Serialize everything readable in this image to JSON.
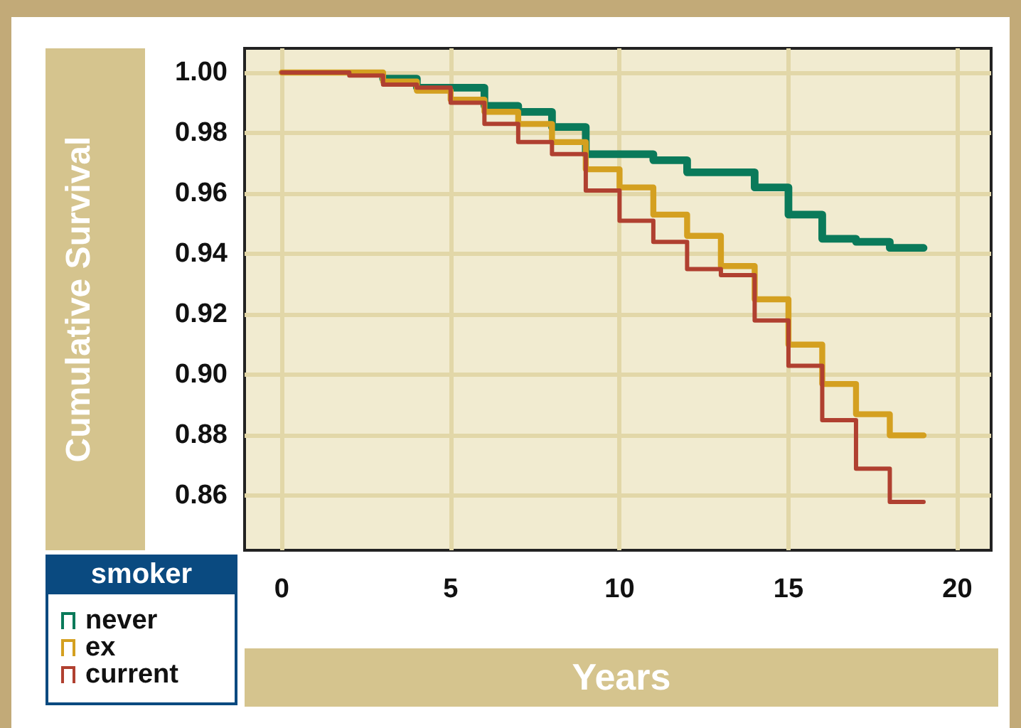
{
  "chart_data": {
    "type": "step",
    "xlabel": "Years",
    "ylabel": "Cumulative Survival",
    "legend_title": "smoker",
    "legend": "bottom left",
    "grid": true,
    "line_style": "solid",
    "marker": "none",
    "x": [
      0,
      1,
      2,
      3,
      4,
      5,
      6,
      7,
      8,
      9,
      10,
      11,
      12,
      13,
      14,
      15,
      16,
      17,
      18,
      19
    ],
    "xlim": [
      -1.1,
      21
    ],
    "xticks": [
      0,
      5,
      10,
      15,
      20
    ],
    "ylim": [
      0.842,
      1.008
    ],
    "yticks": [
      {
        "value": 0.86,
        "label": "0.86"
      },
      {
        "value": 0.88,
        "label": "0.88"
      },
      {
        "value": 0.9,
        "label": "0.90"
      },
      {
        "value": 0.92,
        "label": "0.92"
      },
      {
        "value": 0.94,
        "label": "0.94"
      },
      {
        "value": 0.96,
        "label": "0.96"
      },
      {
        "value": 0.98,
        "label": "0.98"
      },
      {
        "value": 1,
        "label": "1.00"
      }
    ],
    "series": [
      {
        "name": "never",
        "color": "#0a7a5a",
        "values": [
          null,
          null,
          null,
          0.998,
          0.995,
          0.995,
          0.989,
          0.987,
          0.982,
          0.973,
          0.973,
          0.971,
          0.967,
          0.967,
          0.962,
          0.953,
          0.945,
          0.944,
          0.942,
          0.942
        ]
      },
      {
        "name": "ex",
        "color": "#d4a020",
        "values": [
          1,
          1,
          1,
          0.997,
          0.994,
          0.991,
          0.987,
          0.983,
          0.977,
          0.968,
          0.962,
          0.953,
          0.946,
          0.936,
          0.925,
          0.91,
          0.897,
          0.887,
          0.88,
          0.88
        ]
      },
      {
        "name": "current",
        "color": "#b04030",
        "values": [
          1,
          1,
          0.999,
          0.996,
          0.995,
          0.99,
          0.983,
          0.977,
          0.973,
          0.961,
          0.951,
          0.944,
          0.935,
          0.933,
          0.918,
          0.903,
          0.885,
          0.869,
          0.858,
          0.858
        ]
      }
    ]
  }
}
